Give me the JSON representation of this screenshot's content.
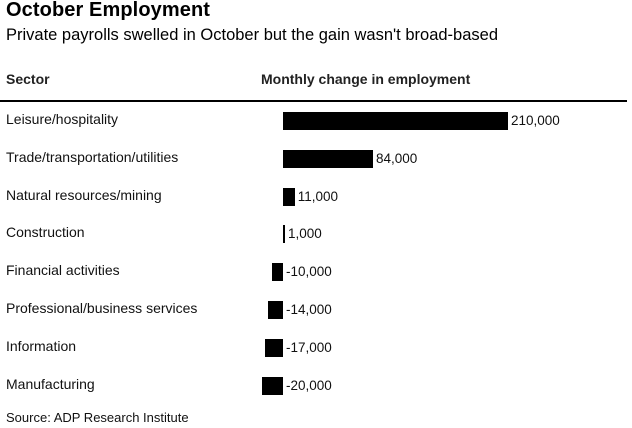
{
  "title": "October Employment",
  "subtitle": "Private payrolls swelled in October but the gain wasn't broad-based",
  "columns": {
    "sector": "Sector",
    "change": "Monthly change in employment"
  },
  "source": "Source: ADP Research Institute",
  "chart_data": {
    "type": "bar",
    "orientation": "horizontal",
    "categories": [
      "Leisure/hospitality",
      "Trade/transportation/utilities",
      "Natural resources/mining",
      "Construction",
      "Financial activities",
      "Professional/business services",
      "Information",
      "Manufacturing"
    ],
    "values": [
      210000,
      84000,
      11000,
      1000,
      -10000,
      -14000,
      -17000,
      -20000
    ],
    "value_labels": [
      "210,000",
      "84,000",
      "11,000",
      "1,000",
      "-10,000",
      "-14,000",
      "-17,000",
      "-20,000"
    ],
    "bar_color": "#000000",
    "grid": false
  }
}
